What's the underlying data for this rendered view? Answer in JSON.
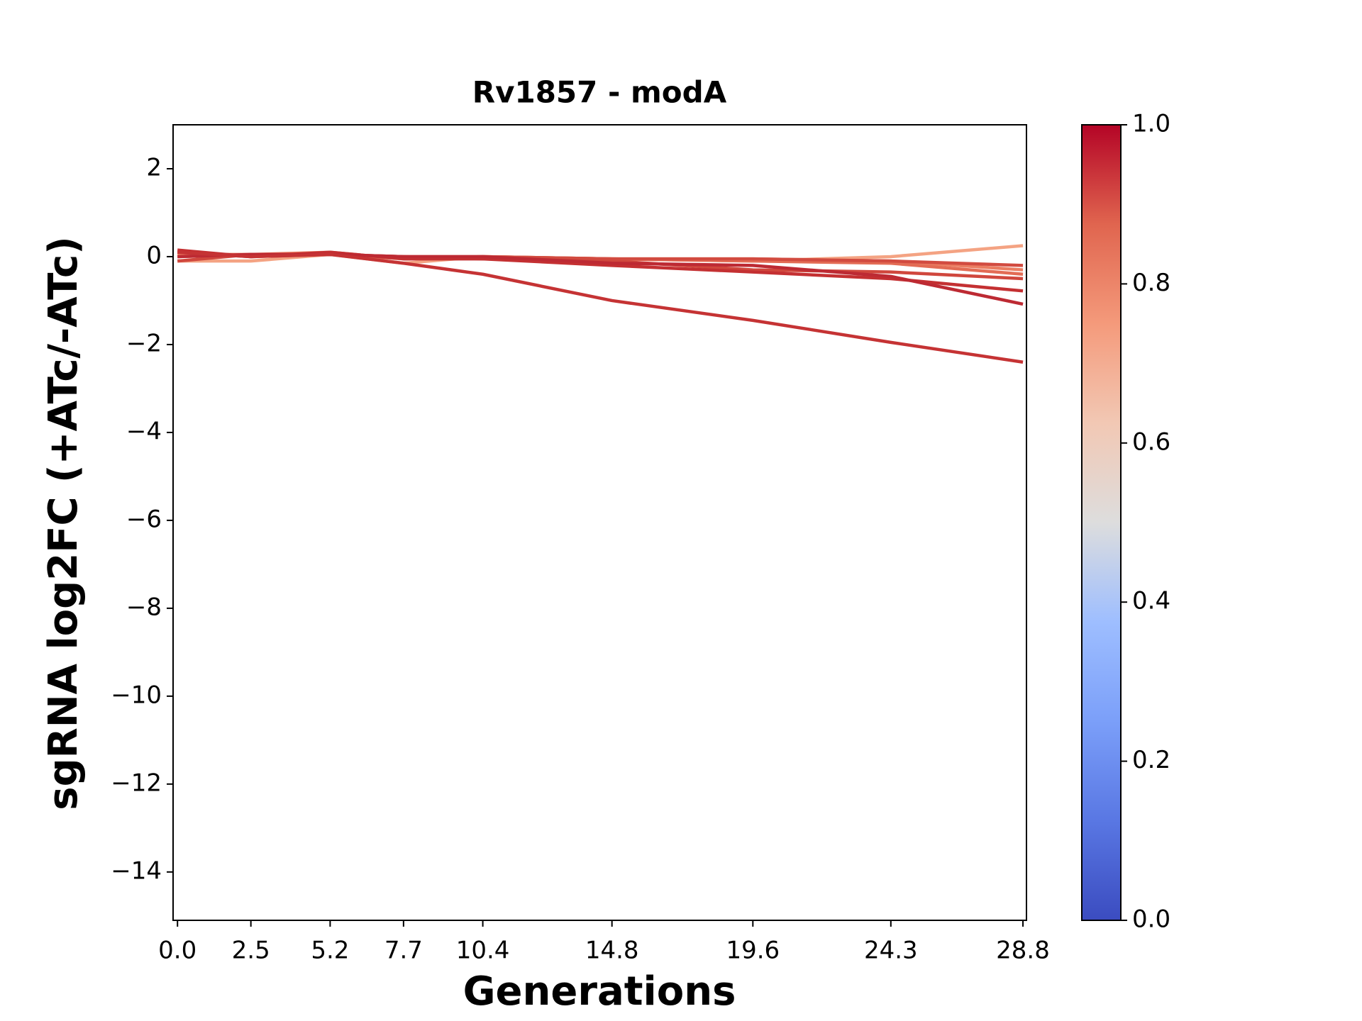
{
  "chart_data": {
    "type": "line",
    "title": "Rv1857 - modA",
    "xlabel": "Generations",
    "ylabel": "sgRNA log2FC (+ATc/-ATc)",
    "x": [
      0,
      2.5,
      5.2,
      7.7,
      10.4,
      14.8,
      19.6,
      24.3,
      28.8
    ],
    "xlim": [
      -0.15,
      28.92
    ],
    "xticks": [
      {
        "value": 0,
        "label": "0.0"
      },
      2.5,
      5.2,
      7.7,
      10.4,
      14.8,
      19.6,
      24.3,
      28.8
    ],
    "ylim": [
      -15.1,
      3
    ],
    "yticks": [
      {
        "value": -14,
        "label": "−14"
      },
      {
        "value": -12,
        "label": "−12"
      },
      {
        "value": -10,
        "label": "−10"
      },
      {
        "value": -8,
        "label": "−8"
      },
      {
        "value": -6,
        "label": "−6"
      },
      {
        "value": -4,
        "label": "−4"
      },
      {
        "value": -2,
        "label": "−2"
      },
      0,
      2
    ],
    "grid": false,
    "series": [
      {
        "color": "#f4a383",
        "values": [
          -0.1,
          -0.1,
          0.05,
          -0.15,
          0,
          -0.05,
          -0.1,
          0.0,
          0.25
        ]
      },
      {
        "color": "#eb7d62",
        "values": [
          0.05,
          0.05,
          0.1,
          -0.05,
          0,
          -0.05,
          -0.05,
          -0.1,
          -0.3
        ]
      },
      {
        "color": "#e36c55",
        "values": [
          0,
          0.05,
          0.05,
          -0.05,
          0,
          -0.05,
          -0.1,
          -0.15,
          -0.4
        ]
      },
      {
        "color": "#d24b40",
        "values": [
          0.1,
          0.0,
          0.05,
          0,
          0,
          -0.05,
          -0.05,
          -0.1,
          -0.2
        ]
      },
      {
        "color": "#d0473d",
        "values": [
          -0.1,
          0.05,
          0.05,
          0,
          -0.05,
          -0.1,
          -0.3,
          -0.35,
          -0.5
        ]
      },
      {
        "color": "#c43032",
        "values": [
          0.15,
          0.0,
          0.1,
          -0.05,
          -0.05,
          -0.2,
          -0.35,
          -0.5,
          -0.78
        ]
      },
      {
        "color": "#bd2a33",
        "values": [
          0.0,
          0.05,
          0.05,
          0,
          0,
          -0.15,
          -0.2,
          -0.45,
          -1.08
        ]
      },
      {
        "color": "#c53334",
        "values": [
          0.1,
          0.0,
          0.05,
          -0.15,
          -0.4,
          -1.0,
          -1.45,
          -1.95,
          -2.4
        ]
      }
    ],
    "colorbar": {
      "lim": [
        0,
        1
      ],
      "ticks": [
        {
          "value": 0,
          "label": "0.0"
        },
        0.2,
        0.4,
        0.6,
        0.8,
        {
          "value": 1,
          "label": "1.0"
        }
      ]
    }
  }
}
